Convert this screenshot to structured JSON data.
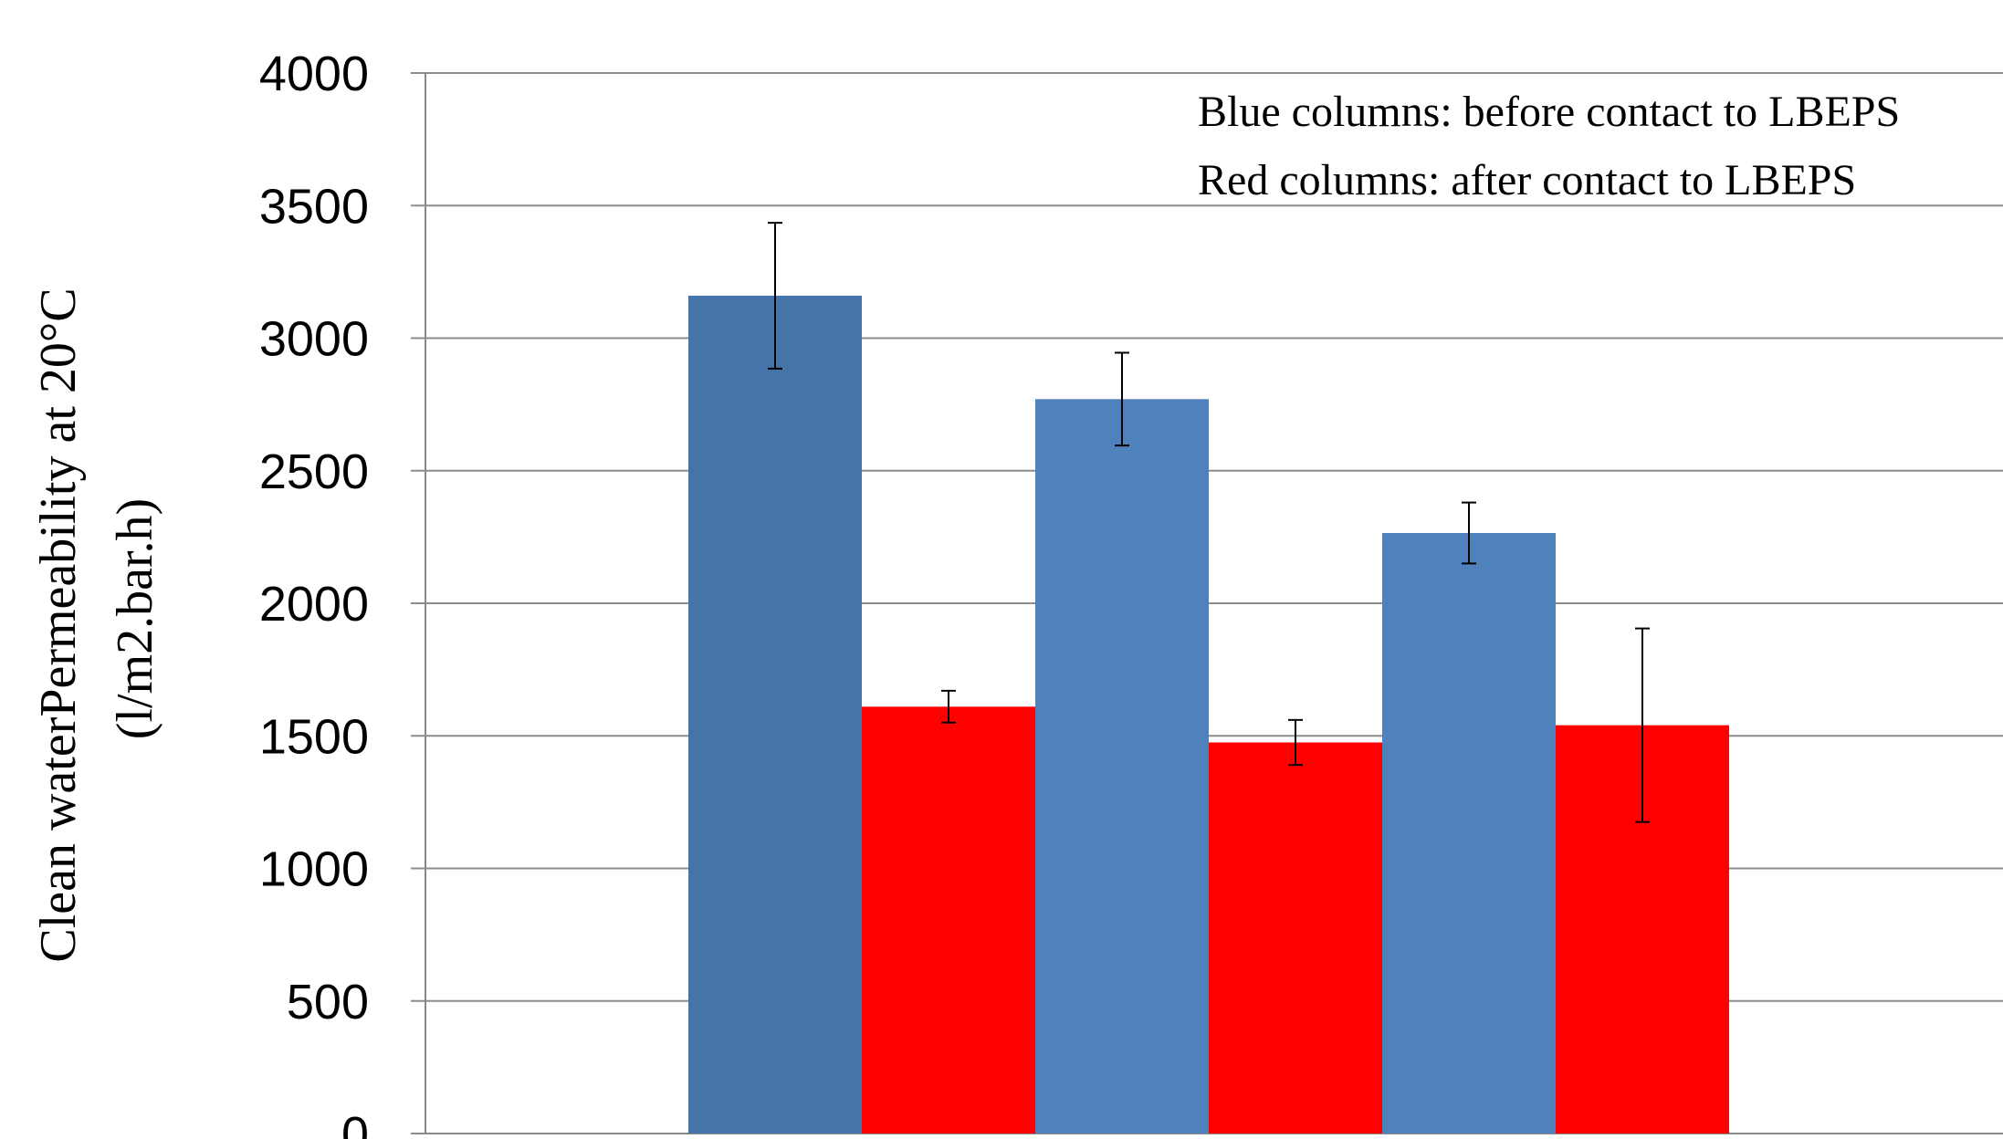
{
  "chart_data": {
    "type": "bar",
    "ylabel_line1": "Clean waterPermeability at 20°C",
    "ylabel_line2": "(l/m2.bar.h)",
    "ylim": [
      0,
      4000
    ],
    "yticks": [
      0,
      500,
      1000,
      1500,
      2000,
      2500,
      3000,
      3500,
      4000
    ],
    "grid": true,
    "annotations": [
      "Blue columns: before contact to LBEPS",
      "Red columns: after contact to LBEPS"
    ],
    "bars": [
      {
        "value": 3160,
        "error": 275,
        "color": "#4673a8"
      },
      {
        "value": 1610,
        "error": 60,
        "color": "#ff0000"
      },
      {
        "value": 2770,
        "error": 175,
        "color": "#4f81bd"
      },
      {
        "value": 1475,
        "error": 85,
        "color": "#ff0000"
      },
      {
        "value": 2265,
        "error": 115,
        "color": "#4f81bd"
      },
      {
        "value": 1540,
        "error": 365,
        "color": "#ff0000"
      }
    ]
  }
}
